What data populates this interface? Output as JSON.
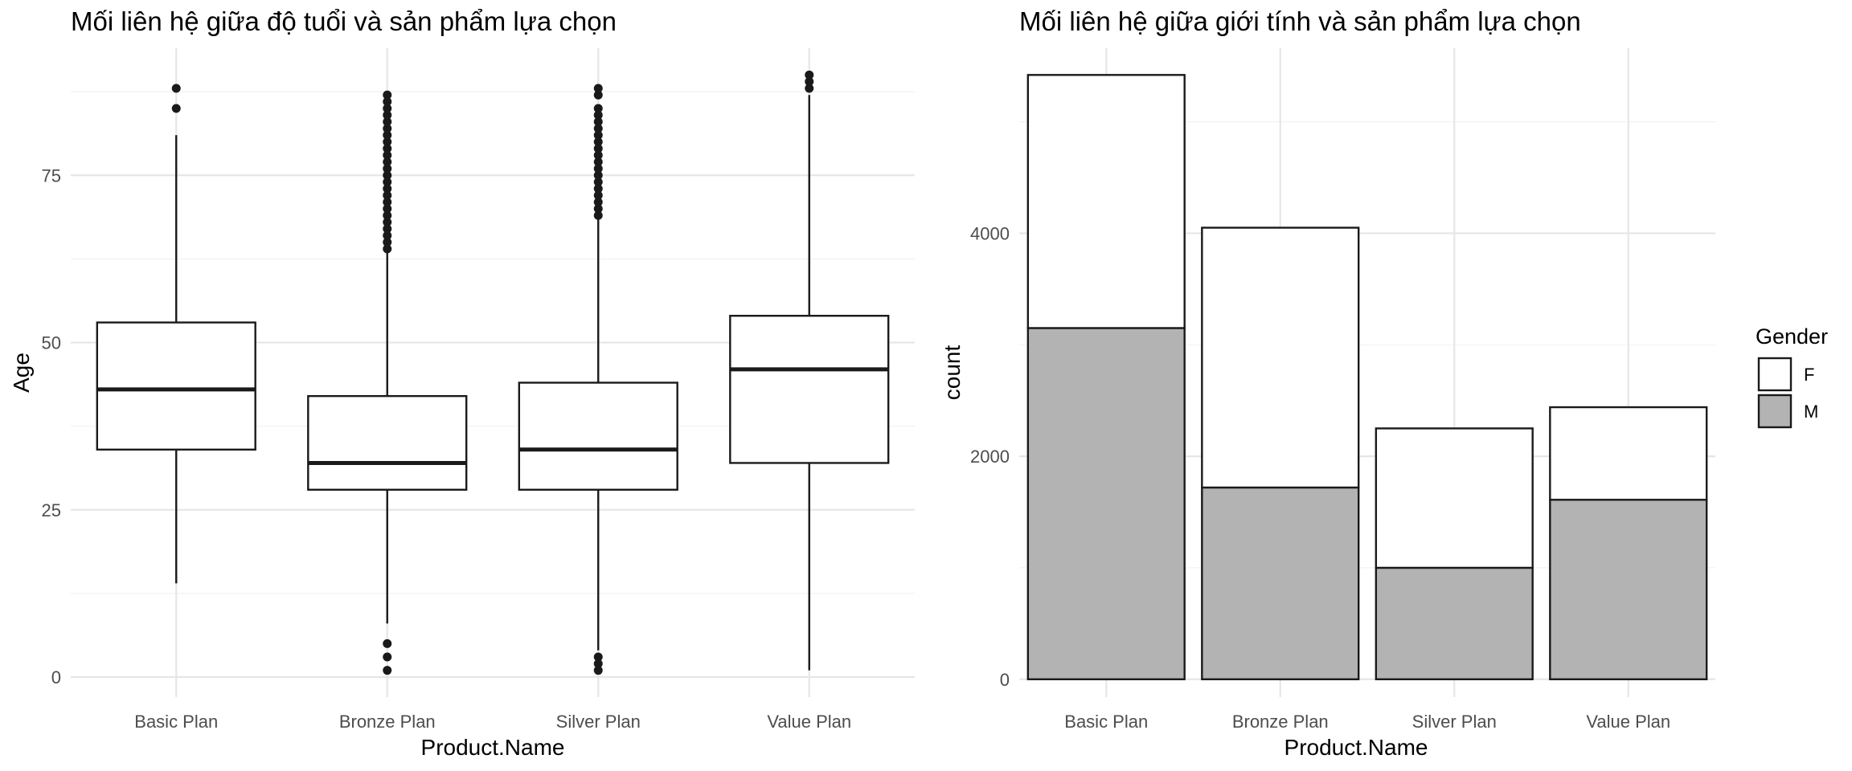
{
  "chart_data": [
    {
      "type": "box",
      "title": "Mối liên hệ giữa độ tuổi và sản phẩm lựa chọn",
      "xlabel": "Product.Name",
      "ylabel": "Age",
      "categories": [
        "Basic Plan",
        "Bronze Plan",
        "Silver Plan",
        "Value Plan"
      ],
      "y_ticks": [
        0,
        25,
        50,
        75
      ],
      "ylim": [
        -3,
        94
      ],
      "boxes": [
        {
          "min": 14,
          "q1": 34,
          "median": 43,
          "q3": 53,
          "max": 81,
          "outliers": [
            85,
            88
          ]
        },
        {
          "min": 8,
          "q1": 28,
          "median": 32,
          "q3": 42,
          "max": 64,
          "outliers": [
            1,
            3,
            5,
            64,
            65,
            66,
            67,
            68,
            69,
            70,
            71,
            72,
            73,
            74,
            75,
            76,
            77,
            78,
            79,
            80,
            81,
            82,
            83,
            84,
            85,
            86,
            87
          ]
        },
        {
          "min": 4,
          "q1": 28,
          "median": 34,
          "q3": 44,
          "max": 69,
          "outliers": [
            1,
            2,
            3,
            69,
            70,
            71,
            72,
            73,
            74,
            75,
            76,
            77,
            78,
            79,
            80,
            81,
            82,
            83,
            84,
            85,
            87,
            88
          ]
        },
        {
          "min": 1,
          "q1": 32,
          "median": 46,
          "q3": 54,
          "max": 87,
          "outliers": [
            88,
            89,
            90
          ]
        }
      ],
      "grid": true
    },
    {
      "type": "bar",
      "stacked": true,
      "title": "Mối liên hệ giữa giới tính và sản phẩm lựa chọn",
      "xlabel": "Product.Name",
      "ylabel": "count",
      "categories": [
        "Basic Plan",
        "Bronze Plan",
        "Silver Plan",
        "Value Plan"
      ],
      "y_ticks": [
        0,
        2000,
        4000
      ],
      "ylim": [
        -160,
        5660
      ],
      "legend": {
        "title": "Gender",
        "placement": "right"
      },
      "series": [
        {
          "name": "M",
          "color": "#b3b3b3",
          "values": [
            3150,
            1720,
            1000,
            1610
          ]
        },
        {
          "name": "F",
          "color": "#ffffff",
          "values": [
            2270,
            2330,
            1250,
            830
          ]
        }
      ],
      "grid": true
    }
  ]
}
